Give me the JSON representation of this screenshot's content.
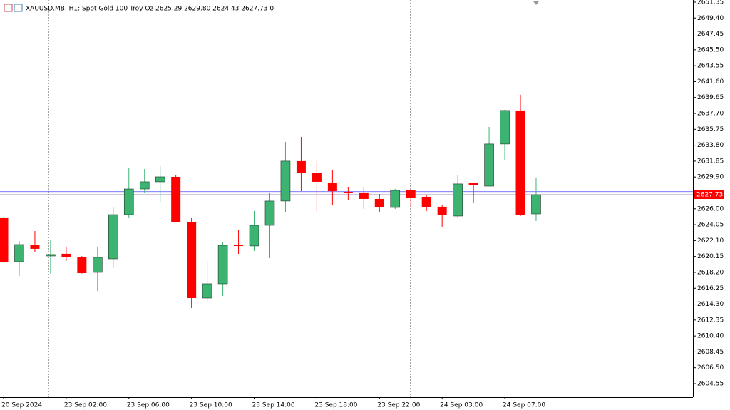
{
  "chart_data": {
    "type": "candlestick",
    "title": "XAUUSD.MB, H1:  Spot Gold 100 Troy Oz  2625.29 2629.80 2624.43 2627.73  0",
    "categories": [
      "20 Sep 2024",
      null,
      null,
      null,
      "23 Sep 02:00",
      null,
      null,
      null,
      "23 Sep 06:00",
      null,
      null,
      null,
      "23 Sep 10:00",
      null,
      null,
      null,
      "23 Sep 14:00",
      null,
      null,
      null,
      "23 Sep 18:00",
      null,
      null,
      null,
      "23 Sep 22:00",
      null,
      null,
      null,
      "24 Sep 03:00",
      null,
      null,
      null,
      "24 Sep 07:00",
      null,
      null
    ],
    "open": [
      2624.85,
      2619.51,
      2621.52,
      2620.21,
      2620.48,
      2620.12,
      2618.2,
      2619.86,
      2625.28,
      2628.43,
      2629.31,
      2629.92,
      2624.32,
      2615.05,
      2616.8,
      2621.52,
      2621.44,
      2623.97,
      2626.95,
      2631.85,
      2630.36,
      2629.13,
      2628.08,
      2628.0,
      2627.21,
      2626.16,
      2628.26,
      2627.47,
      2626.25,
      2625.11,
      2629.13,
      2628.78,
      2633.95,
      2638.06,
      2625.37
    ],
    "high": [
      2624.9,
      2622.05,
      2623.27,
      2622.22,
      2621.35,
      2620.2,
      2621.35,
      2626.16,
      2631.06,
      2630.88,
      2631.23,
      2630.1,
      2624.85,
      2619.6,
      2621.96,
      2623.45,
      2625.72,
      2628.0,
      2634.21,
      2634.82,
      2631.85,
      2630.8,
      2628.7,
      2628.7,
      2627.82,
      2628.43,
      2628.43,
      2627.65,
      2626.42,
      2630.1,
      2629.22,
      2636.05,
      2638.15,
      2640.0,
      2629.75
    ],
    "low": [
      2619.4,
      2617.76,
      2620.65,
      2618.02,
      2619.6,
      2618.05,
      2615.92,
      2618.72,
      2624.85,
      2627.99,
      2626.86,
      2624.32,
      2613.82,
      2614.61,
      2615.31,
      2620.47,
      2620.82,
      2619.95,
      2625.55,
      2628.17,
      2625.63,
      2626.42,
      2627.12,
      2625.98,
      2625.63,
      2625.98,
      2626.25,
      2625.72,
      2623.8,
      2624.85,
      2626.68,
      2628.78,
      2631.93,
      2625.1,
      2624.5
    ],
    "close": [
      2619.42,
      2621.61,
      2621.09,
      2620.39,
      2620.12,
      2618.11,
      2620.04,
      2625.28,
      2628.43,
      2629.31,
      2629.92,
      2624.32,
      2615.05,
      2616.8,
      2621.52,
      2621.44,
      2623.97,
      2626.95,
      2631.85,
      2630.36,
      2629.31,
      2628.17,
      2627.91,
      2627.21,
      2626.16,
      2628.26,
      2627.38,
      2626.16,
      2625.2,
      2629.05,
      2628.87,
      2633.95,
      2638.06,
      2625.2,
      2627.73
    ],
    "up_color": "#3cb371",
    "down_color": "#ff0000",
    "last_price": 2627.73,
    "ask_line": 2628.1,
    "ylim": [
      2602.89,
      2651.61
    ],
    "yticks": [
      2651.35,
      {
        "value": 2649.4,
        "label": "2649.40"
      },
      2647.45,
      {
        "value": 2645.5,
        "label": "2645.50"
      },
      2643.55,
      {
        "value": 2641.6,
        "label": "2641.60"
      },
      2639.65,
      {
        "value": 2637.7,
        "label": "2637.70"
      },
      2635.75,
      {
        "value": 2633.8,
        "label": "2633.80"
      },
      2631.85,
      {
        "value": 2629.9,
        "label": "2629.90"
      },
      {
        "value": 2626,
        "label": "2626.00"
      },
      2624.05,
      {
        "value": 2622.1,
        "label": "2622.10"
      },
      2620.15,
      {
        "value": 2618.2,
        "label": "2618.20"
      },
      2616.25,
      {
        "value": 2614.3,
        "label": "2614.30"
      },
      2612.35,
      {
        "value": 2610.4,
        "label": "2610.40"
      },
      2608.45,
      {
        "value": 2606.5,
        "label": "2606.50"
      },
      2604.55
    ],
    "grid": false
  }
}
